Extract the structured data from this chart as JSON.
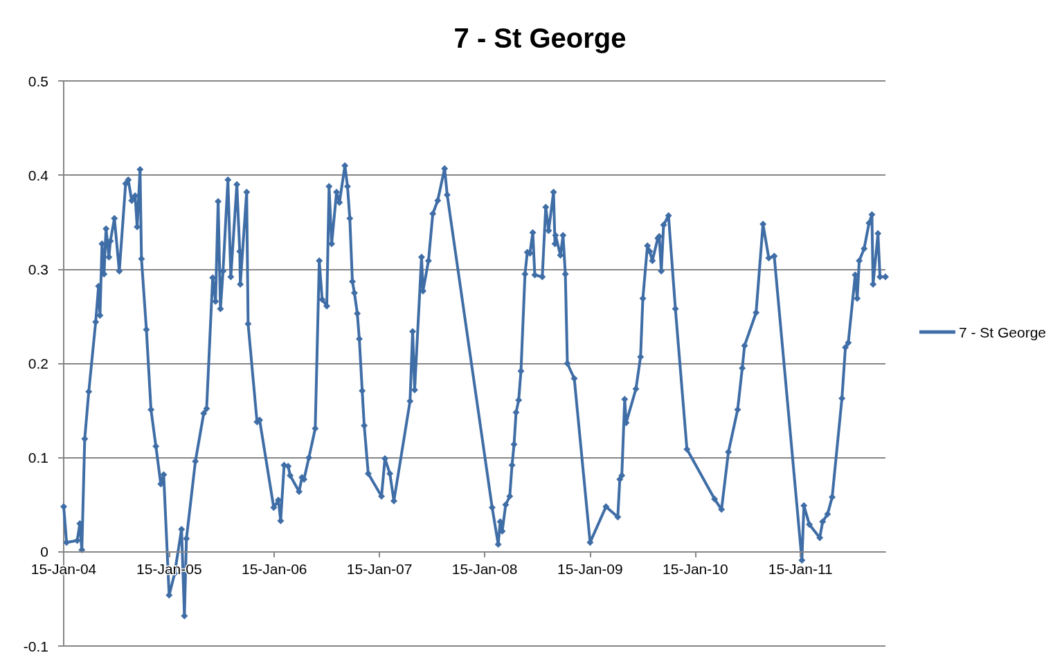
{
  "chart_data": {
    "type": "line",
    "title": "7 - St George",
    "legend": "right",
    "marker": "diamond",
    "grid": "y",
    "xlim": [
      "2004-01-15",
      "2011-11-06"
    ],
    "xticks": [
      {
        "value": "2004-01-15",
        "label": "15-Jan-04"
      },
      {
        "value": "2005-01-15",
        "label": "15-Jan-05"
      },
      {
        "value": "2006-01-15",
        "label": "15-Jan-06"
      },
      {
        "value": "2007-01-15",
        "label": "15-Jan-07"
      },
      {
        "value": "2008-01-15",
        "label": "15-Jan-08"
      },
      {
        "value": "2009-01-15",
        "label": "15-Jan-09"
      },
      {
        "value": "2010-01-15",
        "label": "15-Jan-10"
      },
      {
        "value": "2011-01-15",
        "label": "15-Jan-11"
      }
    ],
    "ylim": [
      -0.1,
      0.5
    ],
    "yticks": [
      -0.1,
      0,
      0.1,
      0.2,
      0.3,
      0.4,
      0.5
    ],
    "x": [
      "2004-01-15",
      "2004-01-25",
      "2004-03-02",
      "2004-03-11",
      "2004-03-18",
      "2004-03-28",
      "2004-04-11",
      "2004-05-05",
      "2004-05-15",
      "2004-05-20",
      "2004-05-27",
      "2004-06-03",
      "2004-06-10",
      "2004-06-20",
      "2004-06-25",
      "2004-07-09",
      "2004-07-26",
      "2004-08-17",
      "2004-08-26",
      "2004-09-07",
      "2004-09-19",
      "2004-09-26",
      "2004-10-06",
      "2004-10-11",
      "2004-10-28",
      "2004-11-13",
      "2004-11-30",
      "2004-12-17",
      "2004-12-27",
      "2005-01-15",
      "2005-02-03",
      "2005-02-27",
      "2005-03-09",
      "2005-03-16",
      "2005-04-16",
      "2005-05-15",
      "2005-05-25",
      "2005-06-15",
      "2005-06-25",
      "2005-07-04",
      "2005-07-12",
      "2005-07-21",
      "2005-08-07",
      "2005-08-17",
      "2005-09-07",
      "2005-09-17",
      "2005-09-19",
      "2005-10-11",
      "2005-10-16",
      "2005-11-16",
      "2005-11-25",
      "2006-01-13",
      "2006-01-29",
      "2006-02-06",
      "2006-02-18",
      "2006-03-04",
      "2006-03-11",
      "2006-04-11",
      "2006-04-21",
      "2006-04-28",
      "2006-05-15",
      "2006-06-06",
      "2006-06-20",
      "2006-06-30",
      "2006-07-16",
      "2006-07-24",
      "2006-08-02",
      "2006-08-19",
      "2006-08-29",
      "2006-09-17",
      "2006-09-26",
      "2006-10-04",
      "2006-10-13",
      "2006-10-20",
      "2006-10-30",
      "2006-11-06",
      "2006-11-16",
      "2006-11-23",
      "2006-12-07",
      "2007-01-22",
      "2007-02-03",
      "2007-02-20",
      "2007-03-06",
      "2007-05-01",
      "2007-05-10",
      "2007-05-17",
      "2007-06-10",
      "2007-06-15",
      "2007-07-04",
      "2007-07-19",
      "2007-08-05",
      "2007-08-29",
      "2007-09-07",
      "2008-02-10",
      "2008-03-02",
      "2008-03-09",
      "2008-03-16",
      "2008-03-28",
      "2008-04-11",
      "2008-04-19",
      "2008-04-26",
      "2008-05-03",
      "2008-05-12",
      "2008-05-20",
      "2008-06-03",
      "2008-06-11",
      "2008-06-20",
      "2008-06-30",
      "2008-07-07",
      "2008-08-02",
      "2008-08-14",
      "2008-08-24",
      "2008-09-10",
      "2008-09-15",
      "2008-09-17",
      "2008-10-04",
      "2008-10-13",
      "2008-10-21",
      "2008-10-28",
      "2008-11-21",
      "2009-01-15",
      "2009-03-11",
      "2009-04-21",
      "2009-04-28",
      "2009-05-05",
      "2009-05-15",
      "2009-05-20",
      "2009-06-23",
      "2009-07-09",
      "2009-07-17",
      "2009-08-02",
      "2009-08-10",
      "2009-08-19",
      "2009-09-07",
      "2009-09-12",
      "2009-09-19",
      "2009-09-27",
      "2009-10-14",
      "2009-11-07",
      "2009-12-17",
      "2010-03-23",
      "2010-04-16",
      "2010-05-10",
      "2010-06-11",
      "2010-06-27",
      "2010-07-05",
      "2010-08-14",
      "2010-09-07",
      "2010-09-27",
      "2010-10-16",
      "2011-01-20",
      "2011-01-27",
      "2011-02-15",
      "2011-03-23",
      "2011-04-02",
      "2011-04-19",
      "2011-05-05",
      "2011-06-08",
      "2011-06-20",
      "2011-06-30",
      "2011-07-24",
      "2011-07-31",
      "2011-08-07",
      "2011-08-24",
      "2011-09-10",
      "2011-09-20",
      "2011-09-24",
      "2011-10-11",
      "2011-10-18",
      "2011-11-06"
    ],
    "series": [
      {
        "name": "7 - St George",
        "color": "#3f6da6",
        "values": [
          0.048,
          0.01,
          0.012,
          0.03,
          0.002,
          0.12,
          0.17,
          0.244,
          0.282,
          0.251,
          0.327,
          0.295,
          0.343,
          0.313,
          0.33,
          0.354,
          0.298,
          0.391,
          0.395,
          0.373,
          0.378,
          0.345,
          0.406,
          0.311,
          0.236,
          0.151,
          0.112,
          0.072,
          0.082,
          -0.046,
          -0.023,
          0.024,
          -0.068,
          0.014,
          0.096,
          0.147,
          0.152,
          0.291,
          0.266,
          0.372,
          0.258,
          0.298,
          0.395,
          0.292,
          0.39,
          0.319,
          0.284,
          0.382,
          0.242,
          0.138,
          0.14,
          0.047,
          0.055,
          0.033,
          0.092,
          0.091,
          0.081,
          0.064,
          0.079,
          0.077,
          0.1,
          0.131,
          0.309,
          0.268,
          0.261,
          0.388,
          0.327,
          0.382,
          0.371,
          0.41,
          0.388,
          0.354,
          0.287,
          0.275,
          0.253,
          0.226,
          0.171,
          0.134,
          0.083,
          0.059,
          0.099,
          0.083,
          0.054,
          0.16,
          0.234,
          0.172,
          0.313,
          0.277,
          0.309,
          0.359,
          0.373,
          0.407,
          0.379,
          0.047,
          0.008,
          0.032,
          0.022,
          0.05,
          0.059,
          0.092,
          0.114,
          0.148,
          0.161,
          0.192,
          0.295,
          0.318,
          0.317,
          0.339,
          0.294,
          0.292,
          0.366,
          0.341,
          0.382,
          0.327,
          0.336,
          0.315,
          0.336,
          0.295,
          0.2,
          0.184,
          0.01,
          0.048,
          0.037,
          0.077,
          0.081,
          0.162,
          0.137,
          0.173,
          0.207,
          0.269,
          0.325,
          0.319,
          0.309,
          0.333,
          0.335,
          0.298,
          0.347,
          0.357,
          0.258,
          0.109,
          0.056,
          0.045,
          0.106,
          0.151,
          0.195,
          0.219,
          0.254,
          0.348,
          0.312,
          0.314,
          -0.009,
          0.049,
          0.029,
          0.015,
          0.032,
          0.04,
          0.058,
          0.163,
          0.217,
          0.222,
          0.294,
          0.269,
          0.309,
          0.322,
          0.349,
          0.358,
          0.284,
          0.338,
          0.292,
          0.292
        ]
      }
    ]
  }
}
